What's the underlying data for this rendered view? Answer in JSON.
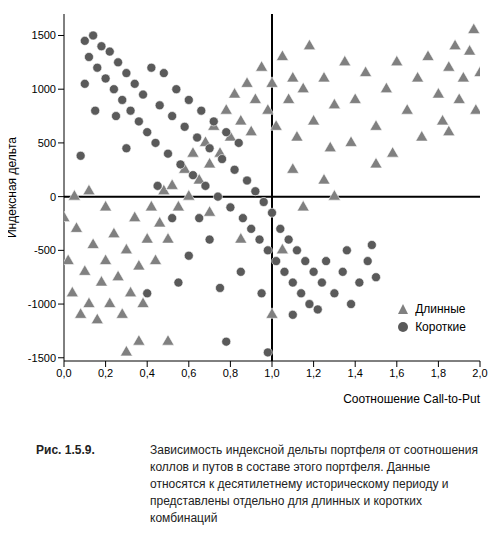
{
  "chart_data": {
    "type": "scatter",
    "x_label": "Соотношение Call-to-Put",
    "y_label": "Индексная дельта",
    "caption_label": "Рис. 1.5.9.",
    "caption": "Зависимость индексной дельты портфеля от соотношения коллов и путов в составе этого портфеля. Данные относятся к десятилетнему историческому периоду и представлены отдельно для длинных и коротких комбинаций",
    "xlim": [
      0,
      2.0
    ],
    "ylim": [
      -1530,
      1700
    ],
    "xticks": [
      {
        "value": 0,
        "label": "0,0"
      },
      {
        "value": 0.2,
        "label": "0,2"
      },
      {
        "value": 0.4,
        "label": "0,4"
      },
      {
        "value": 0.6,
        "label": "0,6"
      },
      {
        "value": 0.8,
        "label": "0,8"
      },
      {
        "value": 1.0,
        "label": "1,0"
      },
      {
        "value": 1.2,
        "label": "1,2"
      },
      {
        "value": 1.4,
        "label": "1,4"
      },
      {
        "value": 1.6,
        "label": "1,6"
      },
      {
        "value": 1.8,
        "label": "1,8"
      },
      {
        "value": 2.0,
        "label": "2,0"
      }
    ],
    "yticks": [
      -1500,
      -1000,
      -500,
      0,
      500,
      1000,
      1500
    ],
    "reference_lines": {
      "x": 1.0,
      "y": 0
    },
    "grid": false,
    "legend": "lower right",
    "series": [
      {
        "name": "Длинные",
        "color": "#808080",
        "marker": "triangle",
        "x": [
          0.0,
          0.02,
          0.04,
          0.06,
          0.08,
          0.1,
          0.12,
          0.14,
          0.16,
          0.18,
          0.2,
          0.22,
          0.24,
          0.26,
          0.28,
          0.3,
          0.32,
          0.34,
          0.36,
          0.38,
          0.4,
          0.42,
          0.3,
          0.36,
          0.05,
          0.12,
          0.2,
          0.44,
          0.46,
          0.48,
          0.5,
          0.52,
          0.55,
          0.58,
          0.6,
          0.62,
          0.65,
          0.68,
          0.7,
          0.72,
          0.75,
          0.78,
          0.8,
          0.82,
          0.85,
          0.88,
          0.9,
          0.92,
          0.95,
          0.98,
          1.0,
          1.02,
          1.05,
          1.08,
          1.1,
          1.12,
          1.15,
          1.18,
          1.2,
          1.25,
          1.28,
          1.3,
          1.35,
          1.38,
          1.4,
          1.45,
          1.5,
          1.55,
          1.58,
          1.6,
          1.65,
          1.7,
          1.72,
          1.75,
          1.8,
          1.82,
          1.85,
          1.88,
          1.9,
          1.92,
          1.95,
          1.98,
          2.0,
          1.97,
          1.85,
          1.5,
          1.3,
          1.15,
          1.0,
          0.85,
          0.7,
          1.1,
          1.25,
          0.5,
          1.05
        ],
        "values": [
          -200,
          -600,
          -900,
          -300,
          -1100,
          -700,
          -1000,
          -450,
          -1150,
          -800,
          -600,
          -1000,
          -350,
          -750,
          -1100,
          -500,
          -900,
          -200,
          -650,
          -1000,
          -400,
          -100,
          -1450,
          -1350,
          0,
          50,
          -100,
          -600,
          -250,
          50,
          -400,
          100,
          -100,
          250,
          0,
          400,
          150,
          500,
          300,
          650,
          400,
          800,
          550,
          950,
          700,
          1050,
          600,
          900,
          1200,
          800,
          1050,
          650,
          1300,
          900,
          1100,
          550,
          1000,
          1400,
          700,
          1100,
          450,
          850,
          1250,
          500,
          900,
          1150,
          650,
          1000,
          400,
          1250,
          800,
          1100,
          550,
          1300,
          950,
          700,
          1200,
          1400,
          900,
          1100,
          1350,
          800,
          1150,
          1550,
          600,
          300,
          0,
          -100,
          -1100,
          -400,
          -150,
          250,
          150,
          -1350,
          -500
        ]
      },
      {
        "name": "Короткие",
        "color": "#5a5a5a",
        "marker": "circle",
        "x": [
          0.1,
          0.12,
          0.14,
          0.16,
          0.18,
          0.2,
          0.22,
          0.24,
          0.26,
          0.28,
          0.1,
          0.08,
          0.15,
          0.3,
          0.32,
          0.34,
          0.36,
          0.38,
          0.4,
          0.42,
          0.44,
          0.46,
          0.48,
          0.5,
          0.52,
          0.54,
          0.56,
          0.58,
          0.6,
          0.62,
          0.64,
          0.66,
          0.68,
          0.7,
          0.72,
          0.74,
          0.76,
          0.78,
          0.8,
          0.82,
          0.84,
          0.86,
          0.88,
          0.9,
          0.92,
          0.94,
          0.96,
          0.98,
          1.0,
          1.02,
          1.04,
          1.06,
          1.08,
          1.1,
          1.12,
          1.14,
          1.16,
          1.18,
          1.2,
          1.22,
          1.24,
          1.26,
          1.3,
          1.34,
          1.38,
          1.42,
          1.46,
          1.5,
          1.48,
          1.36,
          0.78,
          0.98,
          0.4,
          0.6,
          0.7,
          0.52,
          0.45,
          0.65,
          0.85,
          0.95,
          1.1,
          0.3,
          0.25,
          0.55,
          0.75
        ],
        "values": [
          1450,
          1300,
          1500,
          1200,
          1400,
          1100,
          1350,
          1000,
          1250,
          900,
          1050,
          380,
          800,
          1150,
          800,
          1050,
          700,
          950,
          600,
          1200,
          500,
          850,
          1150,
          400,
          750,
          1000,
          300,
          650,
          900,
          200,
          550,
          800,
          100,
          450,
          700,
          0,
          350,
          600,
          -100,
          250,
          500,
          -200,
          150,
          -300,
          50,
          -400,
          -50,
          -500,
          -150,
          -600,
          -300,
          -700,
          -400,
          -800,
          -500,
          -900,
          -600,
          -1000,
          -700,
          -1050,
          -800,
          -600,
          -900,
          -700,
          -1000,
          -800,
          -600,
          -750,
          -450,
          -500,
          -1350,
          -1450,
          -900,
          -550,
          -400,
          -200,
          100,
          -200,
          -700,
          -900,
          -1100,
          450,
          750,
          -800,
          -850
        ]
      }
    ]
  }
}
